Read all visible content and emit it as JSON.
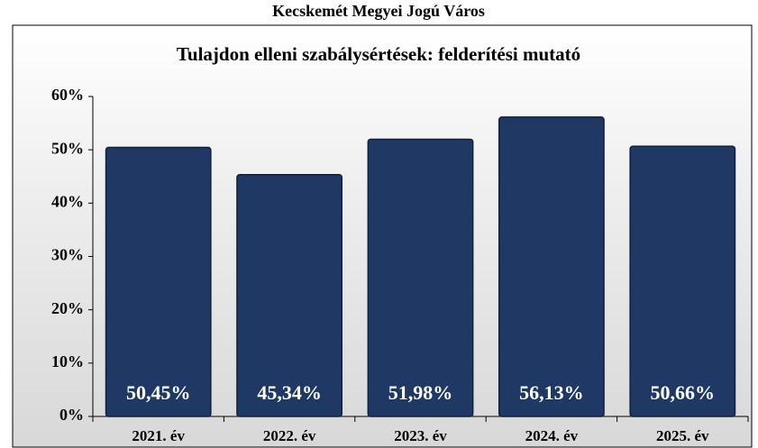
{
  "chart_data": {
    "type": "bar",
    "subtitle": "Kecskemét Megyei Jogú Város",
    "title": "Tulajdon elleni szabálysértések: felderítési mutató",
    "categories": [
      "2021. év",
      "2022. év",
      "2023. év",
      "2024. év",
      "2025. év"
    ],
    "values": [
      50.45,
      45.34,
      51.98,
      56.13,
      50.66
    ],
    "value_labels": [
      "50,45%",
      "45,34%",
      "51,98%",
      "56,13%",
      "50,66%"
    ],
    "color": "#1f3864",
    "ylim": [
      0,
      60
    ],
    "yticks": [
      {
        "value": 0,
        "label": "0%"
      },
      {
        "value": 10,
        "label": "10%"
      },
      {
        "value": 20,
        "label": "20%"
      },
      {
        "value": 30,
        "label": "30%"
      },
      {
        "value": 40,
        "label": "40%"
      },
      {
        "value": 50,
        "label": "50%"
      },
      {
        "value": 60,
        "label": "60%"
      }
    ],
    "grid": false
  }
}
